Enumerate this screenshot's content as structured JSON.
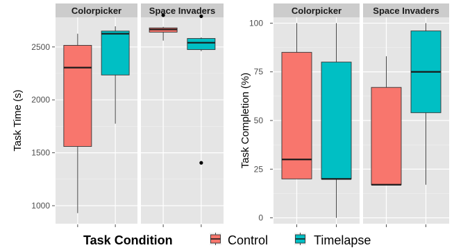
{
  "colors": {
    "Control": "#F8766D",
    "Timelapse": "#00BFC4",
    "panel_bg": "#E5E5E5",
    "strip_bg": "#CCCCCC",
    "grid": "#FFFFFF"
  },
  "legend": {
    "title": "Task Condition",
    "items": [
      "Control",
      "Timelapse"
    ]
  },
  "chart_data": [
    {
      "type": "boxplot",
      "ylabel": "Task Time (s)",
      "ylim": [
        830,
        2780
      ],
      "yticks": [
        1000,
        1500,
        2000,
        2500
      ],
      "ytick_labels": [
        "1000",
        "1500",
        "2000",
        "2500"
      ],
      "facets": [
        {
          "name": "Colorpicker",
          "boxes": [
            {
              "group": "Control",
              "min": 930,
              "q1": 1560,
              "median": 2305,
              "q3": 2515,
              "max": 2625,
              "outliers": []
            },
            {
              "group": "Timelapse",
              "min": 1775,
              "q1": 2235,
              "median": 2625,
              "q3": 2650,
              "max": 2695,
              "outliers": []
            }
          ]
        },
        {
          "name": "Space Invaders",
          "boxes": [
            {
              "group": "Control",
              "min": 2560,
              "q1": 2640,
              "median": 2665,
              "q3": 2680,
              "max": 2690,
              "outliers": [
                2800
              ]
            },
            {
              "group": "Timelapse",
              "min": 2460,
              "q1": 2475,
              "median": 2540,
              "q3": 2580,
              "max": 2590,
              "outliers": [
                2790,
                1405
              ]
            }
          ]
        }
      ]
    },
    {
      "type": "boxplot",
      "ylabel": "Task Completion (%)",
      "ylim": [
        -3,
        103
      ],
      "yticks": [
        0,
        25,
        50,
        75,
        100
      ],
      "ytick_labels": [
        "0",
        "25",
        "50",
        "75",
        "100"
      ],
      "facets": [
        {
          "name": "Colorpicker",
          "boxes": [
            {
              "group": "Control",
              "min": 20,
              "q1": 20,
              "median": 30,
              "q3": 85,
              "max": 100,
              "outliers": []
            },
            {
              "group": "Timelapse",
              "min": 0,
              "q1": 20,
              "median": 20,
              "q3": 80,
              "max": 100,
              "outliers": []
            }
          ]
        },
        {
          "name": "Space Invaders",
          "boxes": [
            {
              "group": "Control",
              "min": 17,
              "q1": 17,
              "median": 17,
              "q3": 67,
              "max": 83,
              "outliers": []
            },
            {
              "group": "Timelapse",
              "min": 17,
              "q1": 54,
              "median": 75,
              "q3": 96,
              "max": 100,
              "outliers": []
            }
          ]
        }
      ]
    }
  ]
}
